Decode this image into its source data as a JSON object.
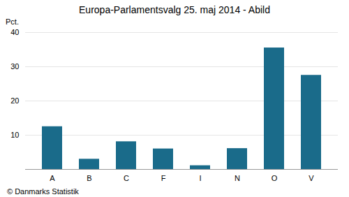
{
  "chart_data": {
    "type": "bar",
    "title": "Europa-Parlamentsvalg 25. maj 2014 - Abild",
    "ylabel": "Pct.",
    "caption": "© Danmarks Statistik",
    "categories": [
      "A",
      "B",
      "C",
      "F",
      "I",
      "N",
      "O",
      "V"
    ],
    "values": [
      12.5,
      3.0,
      8.1,
      6.0,
      1.1,
      6.1,
      35.5,
      27.5
    ],
    "color": "#1a6b8a",
    "ylim": [
      0,
      40
    ],
    "yticks": [
      10,
      20,
      30,
      40
    ],
    "grid": true
  }
}
